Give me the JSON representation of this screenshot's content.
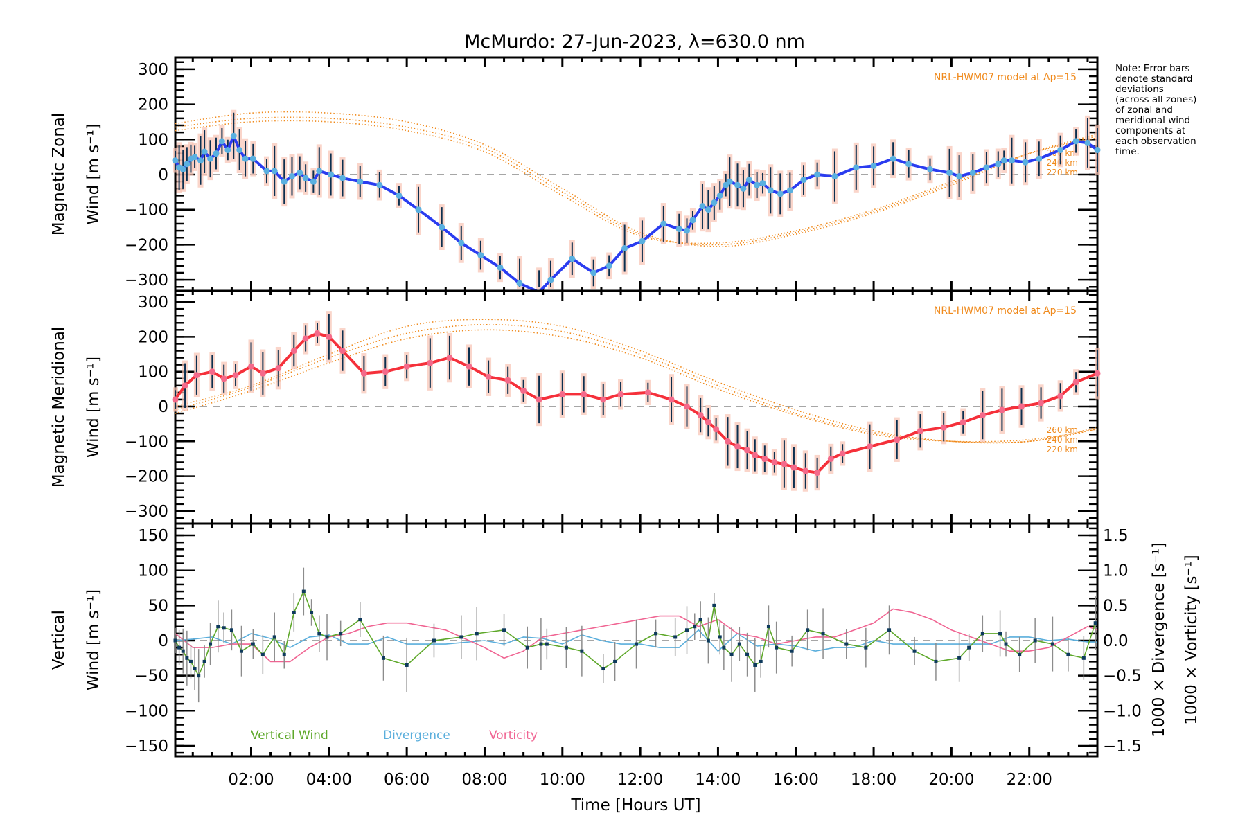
{
  "chart_data": {
    "type": "line",
    "title": "McMurdo: 27-Jun-2023, λ=630.0 nm",
    "xlabel": "Time [Hours UT]",
    "xlim_hours": [
      0.05,
      23.75
    ],
    "xticks": [
      {
        "h": 2,
        "label": "02:00"
      },
      {
        "h": 4,
        "label": "04:00"
      },
      {
        "h": 6,
        "label": "06:00"
      },
      {
        "h": 8,
        "label": "08:00"
      },
      {
        "h": 10,
        "label": "10:00"
      },
      {
        "h": 12,
        "label": "12:00"
      },
      {
        "h": 14,
        "label": "14:00"
      },
      {
        "h": 16,
        "label": "16:00"
      },
      {
        "h": 18,
        "label": "18:00"
      },
      {
        "h": 20,
        "label": "20:00"
      },
      {
        "h": 22,
        "label": "22:00"
      }
    ],
    "note": [
      "Note: Error bars",
      "denote standard",
      "deviations",
      "(across all zones)",
      "of zonal and",
      "meridional wind",
      "components at",
      "each observation",
      "time."
    ],
    "panels": [
      {
        "id": "zonal",
        "ylabel_line1": "Magnetic Zonal",
        "ylabel_line2": "Wind [m s⁻¹]",
        "ylim": [
          -320,
          330
        ],
        "yticks": [
          300,
          200,
          100,
          0,
          -100,
          -200,
          -300
        ],
        "ytick_labels": [
          "300",
          "200",
          "100",
          "0",
          "−100",
          "−200",
          "−300"
        ],
        "line_color": "#2a3cf0",
        "marker_color": "#5ab0e0",
        "model_label": "NRL-HWM07 model at Ap=15",
        "model_altitudes": [
          "260 km",
          "240 km",
          "220 km"
        ],
        "series": {
          "name": "Magnetic Zonal Wind",
          "x": [
            0.05,
            0.15,
            0.25,
            0.35,
            0.45,
            0.55,
            0.7,
            0.8,
            0.95,
            1.1,
            1.25,
            1.4,
            1.55,
            1.7,
            1.85,
            2.05,
            2.4,
            2.6,
            2.85,
            3.05,
            3.25,
            3.4,
            3.6,
            3.75,
            4.05,
            4.35,
            4.8,
            5.3,
            5.8,
            6.3,
            6.9,
            7.4,
            7.9,
            8.4,
            8.9,
            9.4,
            9.7,
            10.25,
            10.8,
            11.2,
            11.6,
            12.05,
            12.6,
            13.0,
            13.2,
            13.35,
            13.6,
            13.75,
            13.9,
            14.05,
            14.2,
            14.3,
            14.5,
            14.65,
            14.8,
            15.0,
            15.15,
            15.35,
            15.6,
            15.85,
            16.2,
            16.55,
            17.0,
            17.55,
            18.0,
            18.5,
            18.9,
            19.45,
            19.95,
            20.2,
            20.55,
            20.9,
            21.2,
            21.35,
            21.55,
            21.9,
            22.25,
            22.8,
            23.2,
            23.5,
            23.75
          ],
          "values": [
            40,
            20,
            15,
            30,
            45,
            50,
            40,
            65,
            45,
            60,
            95,
            70,
            110,
            70,
            45,
            45,
            10,
            10,
            -20,
            -5,
            5,
            -10,
            -20,
            10,
            0,
            -10,
            -20,
            -30,
            -60,
            -100,
            -150,
            -195,
            -230,
            -265,
            -310,
            -335,
            -300,
            -240,
            -280,
            -260,
            -210,
            -190,
            -140,
            -155,
            -160,
            -130,
            -90,
            -100,
            -80,
            -60,
            -30,
            -20,
            -30,
            -40,
            -15,
            -30,
            -25,
            -45,
            -55,
            -45,
            -15,
            0,
            -5,
            20,
            25,
            45,
            30,
            15,
            5,
            -5,
            5,
            20,
            30,
            40,
            40,
            35,
            45,
            70,
            95,
            90,
            70
          ],
          "_note": "values approx; plotted in m/s"
        },
        "model_curves": [
          {
            "name": "260 km",
            "x": [
              0.05,
              2,
              4,
              6,
              8,
              10,
              12,
              14,
              16,
              18,
              20,
              22,
              23.75
            ],
            "values": [
              145,
              175,
              175,
              150,
              85,
              -40,
              -165,
              -205,
              -170,
              -110,
              -30,
              60,
              115
            ]
          },
          {
            "name": "240 km",
            "x": [
              0.05,
              2,
              4,
              6,
              8,
              10,
              12,
              14,
              16,
              18,
              20,
              22,
              23.75
            ],
            "values": [
              135,
              160,
              160,
              135,
              75,
              -50,
              -170,
              -200,
              -165,
              -105,
              -25,
              60,
              110
            ]
          },
          {
            "name": "220 km",
            "x": [
              0.05,
              2,
              4,
              6,
              8,
              10,
              12,
              14,
              16,
              18,
              20,
              22,
              23.75
            ],
            "values": [
              125,
              150,
              150,
              125,
              65,
              -60,
              -175,
              -195,
              -160,
              -100,
              -20,
              60,
              105
            ]
          }
        ]
      },
      {
        "id": "meridional",
        "ylabel_line1": "Magnetic Meridional",
        "ylabel_line2": "Wind [m s⁻¹]",
        "ylim": [
          -330,
          330
        ],
        "yticks": [
          300,
          200,
          100,
          0,
          -100,
          -200,
          -300
        ],
        "ytick_labels": [
          "300",
          "200",
          "100",
          "0",
          "−100",
          "−200",
          "−300"
        ],
        "line_color": "#f5303a",
        "marker_color": "#f46a8a",
        "model_label": "NRL-HWM07 model at Ap=15",
        "model_altitudes": [
          "260 km",
          "240 km",
          "220 km"
        ],
        "series": {
          "name": "Magnetic Meridional Wind",
          "x": [
            0.05,
            0.3,
            0.6,
            1.0,
            1.3,
            1.6,
            2.0,
            2.3,
            2.7,
            3.1,
            3.4,
            3.7,
            4.0,
            4.35,
            4.9,
            5.45,
            6.0,
            6.6,
            7.1,
            7.6,
            8.1,
            8.6,
            9.0,
            9.4,
            10.0,
            10.55,
            11.05,
            11.5,
            12.2,
            12.8,
            13.2,
            13.55,
            13.75,
            13.95,
            14.25,
            14.5,
            14.75,
            14.95,
            15.2,
            15.45,
            15.7,
            15.95,
            16.25,
            16.55,
            16.9,
            17.2,
            17.9,
            18.6,
            19.2,
            19.8,
            20.3,
            20.8,
            21.3,
            21.8,
            22.3,
            22.8,
            23.2,
            23.75
          ],
          "values": [
            20,
            60,
            90,
            100,
            80,
            90,
            115,
            95,
            110,
            160,
            195,
            210,
            200,
            160,
            95,
            100,
            115,
            125,
            140,
            115,
            85,
            75,
            45,
            20,
            35,
            35,
            20,
            35,
            40,
            20,
            0,
            -25,
            -45,
            -65,
            -100,
            -115,
            -125,
            -140,
            -150,
            -160,
            -165,
            -175,
            -185,
            -190,
            -150,
            -135,
            -115,
            -95,
            -70,
            -60,
            -45,
            -25,
            -10,
            0,
            10,
            30,
            70,
            95
          ]
        },
        "model_curves": [
          {
            "name": "260 km",
            "x": [
              0.05,
              2,
              4,
              6,
              8,
              10,
              12,
              14,
              16,
              18,
              20,
              22,
              23.75
            ],
            "values": [
              0,
              60,
              150,
              230,
              250,
              230,
              160,
              70,
              -10,
              -70,
              -100,
              -100,
              -60
            ]
          },
          {
            "name": "240 km",
            "x": [
              0.05,
              2,
              4,
              6,
              8,
              10,
              12,
              14,
              16,
              18,
              20,
              22,
              23.75
            ],
            "values": [
              -10,
              55,
              140,
              210,
              235,
              215,
              150,
              60,
              -20,
              -75,
              -100,
              -100,
              -65
            ]
          },
          {
            "name": "220 km",
            "x": [
              0.05,
              2,
              4,
              6,
              8,
              10,
              12,
              14,
              16,
              18,
              20,
              22,
              23.75
            ],
            "values": [
              -20,
              45,
              125,
              195,
              220,
              200,
              140,
              50,
              -25,
              -80,
              -100,
              -95,
              -65
            ]
          }
        ]
      },
      {
        "id": "vertical",
        "ylabel_line1": "Vertical",
        "ylabel_line2": "Wind [m s⁻¹]",
        "ylabel_color": "#5ea82a",
        "ylim": [
          -170,
          170
        ],
        "yticks": [
          150,
          100,
          50,
          0,
          -50,
          -100,
          -150
        ],
        "ytick_labels": [
          "150",
          "100",
          "50",
          "0",
          "−50",
          "−100",
          "−150"
        ],
        "right_axis": {
          "ylim": [
            -1.7,
            1.7
          ],
          "yticks": [
            1.5,
            1.0,
            0.5,
            0.0,
            -0.5,
            -1.0,
            -1.5
          ],
          "ytick_labels": [
            "1.5",
            "1.0",
            "0.5",
            "0.0",
            "−0.5",
            "−1.0",
            "−1.5"
          ],
          "label_divergence": "1000 × Divergence [s⁻¹]",
          "label_vorticity": "1000 × Vorticity [s⁻¹]"
        },
        "legend": [
          {
            "label": "Vertical Wind",
            "color": "#5ea82a"
          },
          {
            "label": "Divergence",
            "color": "#5aaedc"
          },
          {
            "label": "Vorticity",
            "color": "#f06492"
          }
        ],
        "series": [
          {
            "name": "Vertical Wind",
            "color": "#5ea82a",
            "x": [
              0.05,
              0.15,
              0.25,
              0.35,
              0.45,
              0.55,
              0.65,
              0.8,
              0.95,
              1.15,
              1.3,
              1.5,
              1.75,
              2.05,
              2.3,
              2.6,
              2.85,
              3.1,
              3.35,
              3.55,
              3.75,
              3.95,
              4.3,
              4.8,
              5.4,
              6.0,
              6.7,
              7.4,
              7.8,
              8.5,
              9.1,
              9.45,
              9.6,
              10.1,
              10.5,
              11.05,
              11.35,
              11.9,
              12.4,
              12.9,
              13.2,
              13.4,
              13.55,
              13.75,
              13.9,
              14.05,
              14.15,
              14.35,
              14.55,
              14.75,
              14.95,
              15.1,
              15.3,
              15.5,
              15.9,
              16.3,
              16.7,
              17.3,
              17.8,
              18.4,
              19.05,
              19.6,
              20.2,
              20.45,
              20.8,
              21.25,
              21.4,
              21.75,
              22.15,
              22.6,
              23.0,
              23.4,
              23.7
            ],
            "values": [
              0,
              -10,
              -15,
              -25,
              -30,
              -40,
              -50,
              -30,
              -5,
              20,
              18,
              15,
              -15,
              -5,
              -20,
              5,
              -20,
              40,
              70,
              40,
              10,
              5,
              10,
              30,
              -25,
              -35,
              0,
              5,
              10,
              15,
              -10,
              -5,
              -5,
              -10,
              -15,
              -40,
              -30,
              -5,
              10,
              5,
              15,
              20,
              30,
              0,
              50,
              5,
              -10,
              -20,
              -5,
              -20,
              -35,
              -30,
              20,
              -10,
              -15,
              15,
              10,
              -5,
              -10,
              15,
              -15,
              -30,
              -25,
              -10,
              10,
              10,
              -5,
              -20,
              0,
              -5,
              -20,
              -25,
              25
            ],
            "_note": "approx"
          },
          {
            "name": "1000 x Divergence",
            "color": "#5aaedc",
            "x": [
              0.05,
              0.5,
              1.0,
              1.5,
              2.0,
              2.5,
              3.0,
              3.5,
              4.0,
              4.5,
              5.0,
              5.5,
              6.0,
              7.0,
              8.0,
              8.5,
              9.0,
              9.5,
              10.0,
              10.5,
              11.0,
              11.5,
              12.0,
              12.5,
              13.0,
              13.5,
              14.0,
              14.5,
              15.0,
              15.5,
              16.0,
              16.5,
              17.0,
              17.5,
              18.0,
              18.5,
              19.0,
              19.5,
              20.0,
              20.5,
              21.0,
              21.5,
              22.0,
              22.5,
              23.0,
              23.5,
              23.75
            ],
            "values": [
              0.0,
              0.02,
              0.05,
              -0.05,
              0.1,
              0.03,
              -0.1,
              0.05,
              0.08,
              -0.05,
              -0.05,
              0.05,
              -0.05,
              -0.05,
              0.0,
              -0.05,
              0.05,
              0.03,
              -0.05,
              0.08,
              0.0,
              -0.05,
              -0.05,
              -0.1,
              -0.1,
              0.15,
              -0.15,
              0.1,
              -0.08,
              -0.05,
              -0.08,
              -0.15,
              -0.1,
              -0.1,
              0.0,
              -0.05,
              -0.05,
              -0.05,
              -0.05,
              -0.05,
              -0.05,
              0.05,
              0.05,
              0.0,
              0.02,
              -0.02,
              -0.02
            ]
          },
          {
            "name": "1000 x Vorticity",
            "color": "#f06492",
            "x": [
              0.05,
              0.5,
              1.0,
              1.5,
              2.0,
              2.5,
              3.0,
              3.5,
              4.0,
              4.5,
              5.0,
              5.5,
              6.0,
              7.0,
              8.0,
              8.5,
              9.0,
              9.5,
              10.0,
              10.5,
              11.0,
              11.5,
              12.0,
              12.5,
              13.0,
              13.5,
              14.0,
              14.5,
              15.0,
              15.5,
              16.0,
              16.5,
              17.0,
              17.5,
              18.0,
              18.5,
              19.0,
              19.5,
              20.0,
              20.5,
              21.0,
              21.5,
              22.0,
              22.5,
              23.0,
              23.5,
              23.75
            ],
            "values": [
              0.1,
              -0.1,
              -0.1,
              -0.05,
              -0.05,
              -0.3,
              -0.3,
              -0.1,
              0.05,
              0.1,
              0.2,
              0.25,
              0.25,
              0.15,
              -0.1,
              -0.25,
              -0.15,
              0.05,
              0.1,
              0.15,
              0.2,
              0.25,
              0.3,
              0.35,
              0.35,
              0.2,
              0.3,
              0.1,
              0.05,
              -0.05,
              0.0,
              0.05,
              0.05,
              0.15,
              0.25,
              0.45,
              0.4,
              0.3,
              0.15,
              0.05,
              -0.05,
              -0.15,
              -0.15,
              -0.1,
              0.05,
              0.2,
              0.15
            ]
          }
        ]
      }
    ]
  }
}
